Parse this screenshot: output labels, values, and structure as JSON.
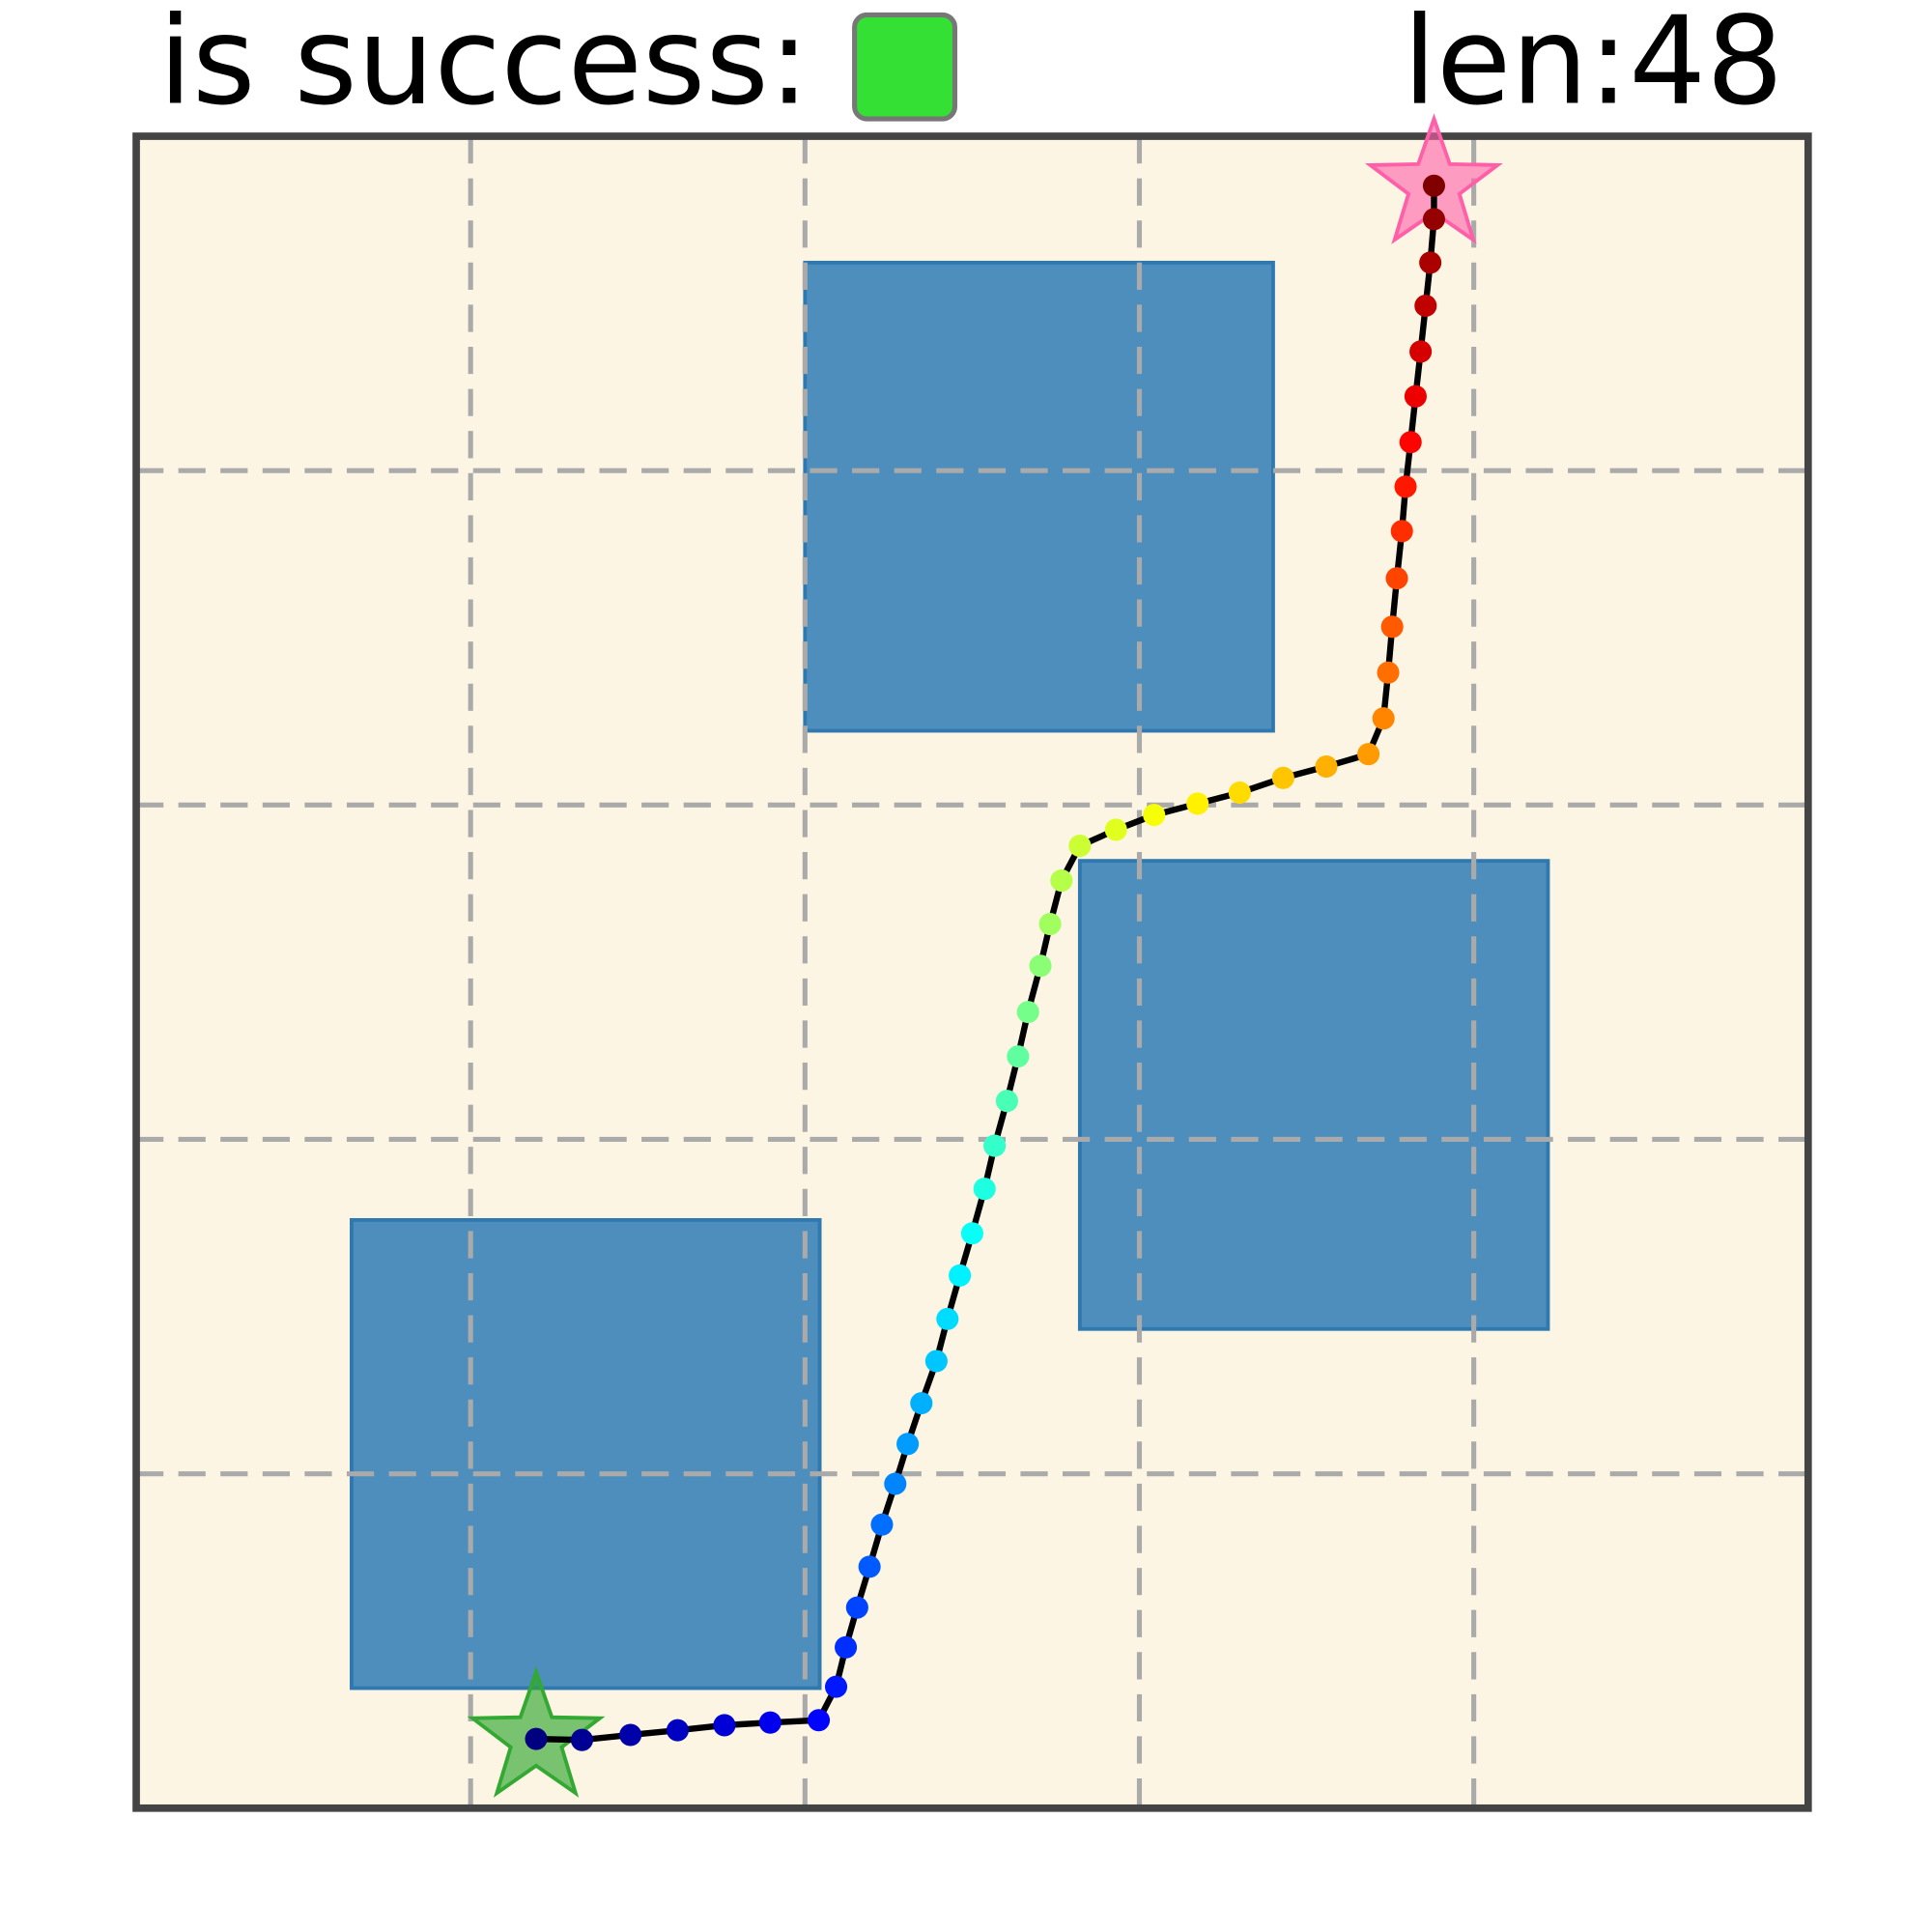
{
  "chart_data": {
    "type": "trajectory",
    "success_label": "is success:",
    "success": true,
    "success_color": "#33e033",
    "length_label": "len:48",
    "xlim": [
      0,
      5
    ],
    "ylim": [
      0,
      5
    ],
    "grid_lines": [
      1,
      2,
      3,
      4
    ],
    "background": "#fcf5e3",
    "obstacle_color": "#4488bb",
    "obstacles": [
      {
        "x": 2.0,
        "y": 3.222,
        "width": 1.4,
        "height": 1.4
      },
      {
        "x": 2.822,
        "y": 1.433,
        "width": 1.4,
        "height": 1.4
      },
      {
        "x": 0.644,
        "y": 0.359,
        "width": 1.4,
        "height": 1.4
      }
    ],
    "start": [
      1.196,
      0.207
    ],
    "start_color": "#33a833",
    "goal": [
      3.881,
      4.852
    ],
    "goal_color": "#ff5fa8",
    "line_color": "#000000",
    "colormap": "jet",
    "x": [
      1.196,
      1.333,
      1.478,
      1.619,
      1.759,
      1.896,
      2.041,
      2.093,
      2.122,
      2.156,
      2.193,
      2.23,
      2.27,
      2.307,
      2.348,
      2.393,
      2.426,
      2.463,
      2.5,
      2.537,
      2.567,
      2.604,
      2.637,
      2.667,
      2.704,
      2.733,
      2.767,
      2.822,
      2.93,
      3.044,
      3.174,
      3.3,
      3.43,
      3.559,
      3.685,
      3.73,
      3.744,
      3.756,
      3.77,
      3.785,
      3.796,
      3.811,
      3.826,
      3.841,
      3.856,
      3.87,
      3.881,
      3.881
    ],
    "y": [
      0.207,
      0.204,
      0.219,
      0.233,
      0.248,
      0.256,
      0.263,
      0.363,
      0.481,
      0.6,
      0.722,
      0.848,
      0.97,
      1.089,
      1.211,
      1.337,
      1.463,
      1.593,
      1.719,
      1.852,
      1.981,
      2.115,
      2.248,
      2.381,
      2.519,
      2.644,
      2.774,
      2.878,
      2.926,
      2.97,
      3.004,
      3.037,
      3.081,
      3.115,
      3.152,
      3.259,
      3.396,
      3.533,
      3.678,
      3.819,
      3.952,
      4.085,
      4.222,
      4.356,
      4.493,
      4.622,
      4.752,
      4.852
    ]
  }
}
